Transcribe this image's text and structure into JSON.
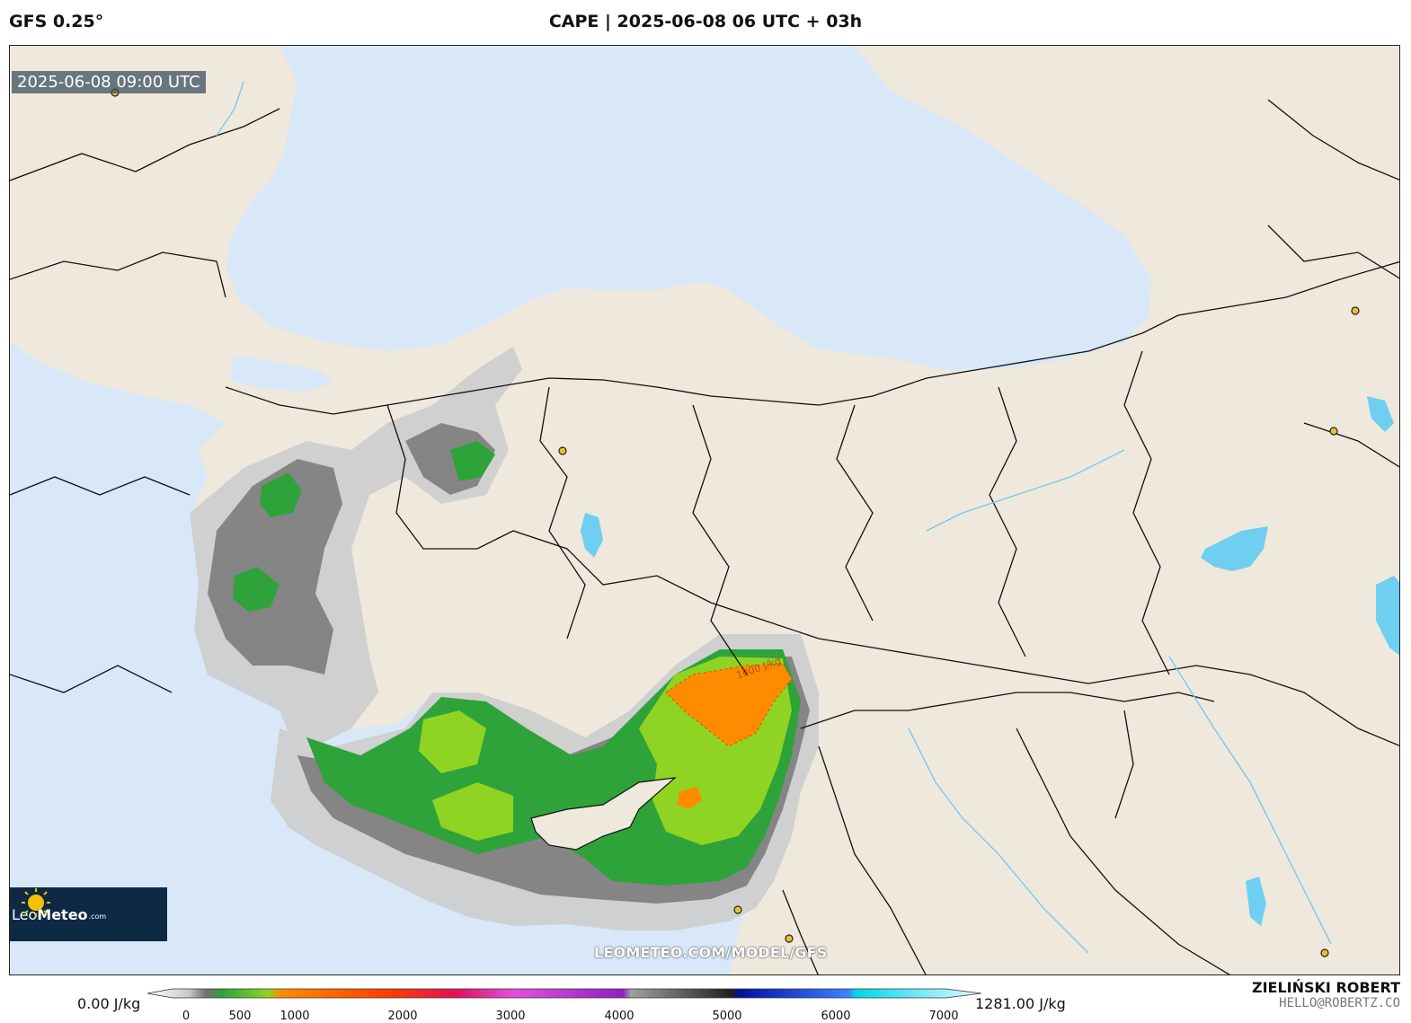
{
  "header": {
    "model": "GFS 0.25°",
    "title": "CAPE | 2025-06-08 06 UTC + 03h"
  },
  "map": {
    "valid_time": "2025-06-08 09:00 UTC",
    "contour_label": "1000 J/kg",
    "watermark": "LEOMETEO.COM/MODEL/GFS",
    "colors": {
      "sea": "#d8e8f8",
      "land": "#efe8dc",
      "lake": "#6ecff0",
      "border": "#111111",
      "green_dark": "#2ea33a",
      "green_light": "#8fd323",
      "orange": "#ff8c00",
      "gray_light": "#cfcfcf",
      "gray_dark": "#6c6c6c"
    }
  },
  "logo": {
    "brand_a": "Leo",
    "brand_b": "Meteo",
    "domain": ".com"
  },
  "colorbar": {
    "min_label": "0.00 J/kg",
    "max_label": "1281.00 J/kg",
    "ticks": [
      "0",
      "500",
      "1000",
      "2000",
      "3000",
      "4000",
      "5000",
      "6000",
      "7000"
    ]
  },
  "author": {
    "name": "ZIELIŃSKI ROBERT",
    "email": "HELLO@ROBERTZ.CO"
  }
}
